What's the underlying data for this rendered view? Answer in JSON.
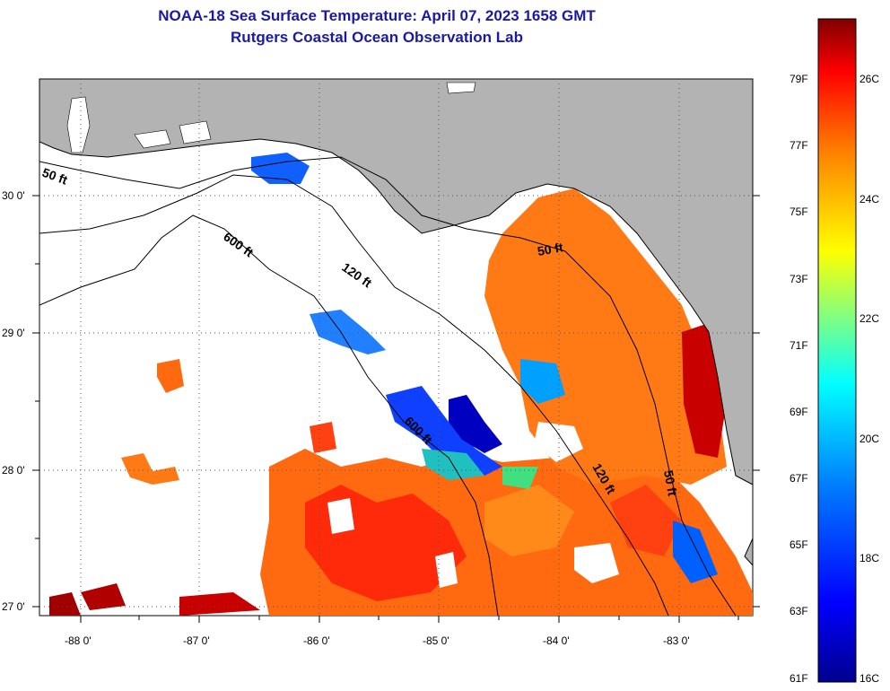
{
  "header": {
    "title": "NOAA-18 Sea Surface Temperature:  April 07, 2023 1658 GMT",
    "subtitle": "Rutgers Coastal Ocean Observation Lab"
  },
  "map": {
    "lon_ticks": [
      "-88 0'",
      "-87 0'",
      "-86 0'",
      "-85 0'",
      "-84 0'",
      "-83 0'"
    ],
    "lat_ticks": [
      "30 0'",
      "29 0'",
      "28 0'",
      "27 0'"
    ],
    "contours": {
      "c50_west": "50 ft",
      "c600_north": "600 ft",
      "c120_north": "120 ft",
      "c50_east": "50 ft",
      "c600_south": "600 ft",
      "c120_south": "120 ft",
      "c50_south": "50 ft"
    },
    "colors": {
      "land": "#b3b3b3",
      "no_data": "#ffffff"
    }
  },
  "colorbar": {
    "f_labels": [
      "79F",
      "77F",
      "75F",
      "73F",
      "71F",
      "69F",
      "67F",
      "65F",
      "63F",
      "61F"
    ],
    "c_labels": [
      "26C",
      "24C",
      "22C",
      "20C",
      "18C",
      "16C"
    ],
    "colors": [
      "#00008f",
      "#0000ff",
      "#0080ff",
      "#00ffff",
      "#80ff80",
      "#ffff00",
      "#ff8000",
      "#ff0000",
      "#800000"
    ]
  }
}
